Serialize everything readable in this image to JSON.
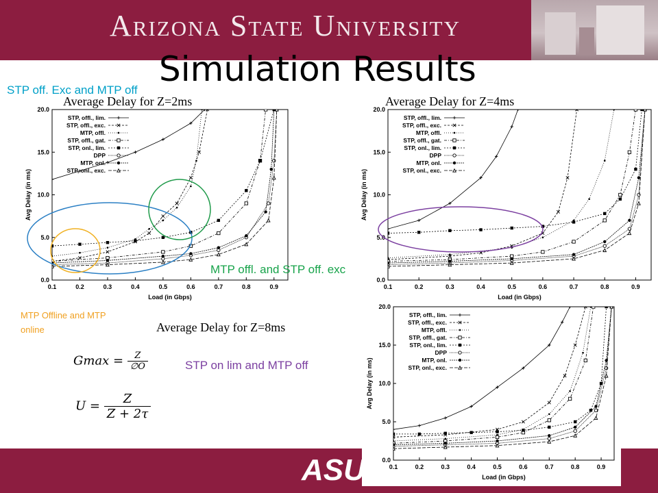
{
  "header": {
    "university": "Arizona State University"
  },
  "footer": {
    "logo": "ASU"
  },
  "slide": {
    "title": "Simulation Results",
    "captions": {
      "z2": "Average Delay for Z=2ms",
      "z4": "Average Delay for Z=4ms",
      "z8": "Average Delay for Z=8ms"
    },
    "notes": {
      "stp_off_exc": "STP off. Exc and MTP off",
      "mtp_stp_exc": "MTP offl. and STP off. exc",
      "mtp_offline_line1": "MTP Offline and MTP",
      "mtp_offline_line2": "online",
      "stp_on_lim": "STP on lim and  MTP off"
    },
    "note_colors": {
      "stp_off_exc": "#00a0c8",
      "mtp_stp_exc": "#17a34a",
      "mtp_offline": "#f0a020",
      "stp_on_lim": "#7b3fa0"
    },
    "equations": {
      "gmax_lhs": "Gmax =",
      "gmax_num": "Z",
      "gmax_den": "∅O",
      "u_lhs": "U =",
      "u_num": "Z",
      "u_den": "Z + 2τ"
    }
  },
  "chart_data": [
    {
      "type": "line",
      "title": "Average Delay for Z=2ms",
      "xlabel": "Load (in Gbps)",
      "ylabel": "Avg Delay (in ms)",
      "xlim": [
        0.1,
        0.95
      ],
      "ylim": [
        0,
        20
      ],
      "xticks": [
        "0.1",
        "0.2",
        "0.3",
        "0.4",
        "0.5",
        "0.6",
        "0.7",
        "0.8",
        "0.9"
      ],
      "yticks": [
        "0.0",
        "5.0",
        "10.0",
        "15.0",
        "20.0"
      ],
      "legend": "top-left",
      "series": [
        {
          "name": "STP, offl., lim.",
          "marker": "plus",
          "points": [
            [
              0.1,
              11.8
            ],
            [
              0.2,
              12.8
            ],
            [
              0.3,
              13.8
            ],
            [
              0.4,
              15.0
            ],
            [
              0.5,
              16.5
            ],
            [
              0.6,
              18.4
            ],
            [
              0.65,
              20
            ]
          ]
        },
        {
          "name": "STP, offl., exc.",
          "marker": "x",
          "points": [
            [
              0.1,
              2.2
            ],
            [
              0.2,
              2.6
            ],
            [
              0.3,
              3.3
            ],
            [
              0.4,
              4.5
            ],
            [
              0.45,
              5.5
            ],
            [
              0.5,
              7.5
            ],
            [
              0.55,
              9.0
            ],
            [
              0.6,
              12.0
            ],
            [
              0.63,
              15.0
            ],
            [
              0.66,
              20
            ]
          ]
        },
        {
          "name": "MTP, offl.",
          "marker": "dot",
          "points": [
            [
              0.1,
              2.8
            ],
            [
              0.2,
              3.2
            ],
            [
              0.3,
              3.8
            ],
            [
              0.4,
              4.8
            ],
            [
              0.45,
              6.0
            ],
            [
              0.5,
              7.0
            ],
            [
              0.55,
              8.5
            ],
            [
              0.6,
              11.0
            ],
            [
              0.62,
              14.0
            ],
            [
              0.64,
              20
            ]
          ]
        },
        {
          "name": "STP, offl., gat.",
          "marker": "square-open",
          "points": [
            [
              0.1,
              2.2
            ],
            [
              0.3,
              2.6
            ],
            [
              0.5,
              3.3
            ],
            [
              0.6,
              4.0
            ],
            [
              0.7,
              5.5
            ],
            [
              0.8,
              9.0
            ],
            [
              0.85,
              14.0
            ],
            [
              0.87,
              20
            ]
          ]
        },
        {
          "name": "STP, onl., lim.",
          "marker": "square",
          "points": [
            [
              0.1,
              4.0
            ],
            [
              0.2,
              4.2
            ],
            [
              0.3,
              4.4
            ],
            [
              0.4,
              4.6
            ],
            [
              0.5,
              5.0
            ],
            [
              0.6,
              5.6
            ],
            [
              0.7,
              7.0
            ],
            [
              0.8,
              10.5
            ],
            [
              0.85,
              14.0
            ],
            [
              0.9,
              20
            ]
          ]
        },
        {
          "name": "DPP",
          "marker": "circle-open",
          "points": [
            [
              0.1,
              1.8
            ],
            [
              0.3,
              2.0
            ],
            [
              0.5,
              2.5
            ],
            [
              0.6,
              2.9
            ],
            [
              0.7,
              3.5
            ],
            [
              0.8,
              5.0
            ],
            [
              0.88,
              9.0
            ],
            [
              0.9,
              14.0
            ],
            [
              0.91,
              20
            ]
          ]
        },
        {
          "name": "MTP, onl.",
          "marker": "circle",
          "points": [
            [
              0.1,
              2.0
            ],
            [
              0.3,
              2.3
            ],
            [
              0.5,
              2.8
            ],
            [
              0.6,
              3.1
            ],
            [
              0.7,
              3.8
            ],
            [
              0.8,
              5.2
            ],
            [
              0.87,
              8.0
            ],
            [
              0.89,
              13.0
            ],
            [
              0.9,
              20
            ]
          ]
        },
        {
          "name": "STP, onl., exc.",
          "marker": "triangle",
          "points": [
            [
              0.1,
              1.6
            ],
            [
              0.3,
              1.8
            ],
            [
              0.5,
              2.1
            ],
            [
              0.6,
              2.4
            ],
            [
              0.7,
              3.0
            ],
            [
              0.8,
              4.2
            ],
            [
              0.88,
              7.0
            ],
            [
              0.9,
              12.0
            ],
            [
              0.91,
              20
            ]
          ]
        }
      ]
    },
    {
      "type": "line",
      "title": "Average Delay for Z=4ms",
      "xlabel": "Load (in Gbps)",
      "ylabel": "Avg Delay (in ms)",
      "xlim": [
        0.1,
        0.95
      ],
      "ylim": [
        0,
        20
      ],
      "xticks": [
        "0.1",
        "0.2",
        "0.3",
        "0.4",
        "0.5",
        "0.6",
        "0.7",
        "0.8",
        "0.9"
      ],
      "yticks": [
        "0.0",
        "5.0",
        "10.0",
        "15.0",
        "20.0"
      ],
      "legend": "top-left",
      "series": [
        {
          "name": "STP, offl., lim.",
          "marker": "plus",
          "points": [
            [
              0.1,
              6.0
            ],
            [
              0.2,
              7.0
            ],
            [
              0.3,
              9.0
            ],
            [
              0.4,
              12.0
            ],
            [
              0.45,
              14.5
            ],
            [
              0.5,
              18.0
            ],
            [
              0.52,
              20
            ]
          ]
        },
        {
          "name": "STP, offl., exc.",
          "marker": "x",
          "points": [
            [
              0.1,
              2.4
            ],
            [
              0.3,
              2.8
            ],
            [
              0.4,
              3.2
            ],
            [
              0.5,
              4.0
            ],
            [
              0.6,
              5.5
            ],
            [
              0.65,
              8.0
            ],
            [
              0.68,
              12.0
            ],
            [
              0.71,
              20
            ]
          ]
        },
        {
          "name": "MTP, offl.",
          "marker": "dot",
          "points": [
            [
              0.1,
              2.6
            ],
            [
              0.3,
              3.0
            ],
            [
              0.5,
              3.8
            ],
            [
              0.6,
              5.0
            ],
            [
              0.7,
              7.0
            ],
            [
              0.75,
              9.5
            ],
            [
              0.8,
              14.0
            ],
            [
              0.83,
              20
            ]
          ]
        },
        {
          "name": "STP, offl., gat.",
          "marker": "square-open",
          "points": [
            [
              0.1,
              2.2
            ],
            [
              0.3,
              2.4
            ],
            [
              0.5,
              2.8
            ],
            [
              0.6,
              3.3
            ],
            [
              0.7,
              4.5
            ],
            [
              0.8,
              7.0
            ],
            [
              0.85,
              10.0
            ],
            [
              0.88,
              15.0
            ],
            [
              0.9,
              20
            ]
          ]
        },
        {
          "name": "STP, onl., lim.",
          "marker": "square",
          "points": [
            [
              0.1,
              5.5
            ],
            [
              0.2,
              5.6
            ],
            [
              0.3,
              5.8
            ],
            [
              0.4,
              5.9
            ],
            [
              0.5,
              6.1
            ],
            [
              0.6,
              6.3
            ],
            [
              0.7,
              6.8
            ],
            [
              0.8,
              7.8
            ],
            [
              0.85,
              9.5
            ],
            [
              0.9,
              13.0
            ],
            [
              0.92,
              20
            ]
          ]
        },
        {
          "name": "DPP",
          "marker": "circle-open",
          "points": [
            [
              0.1,
              1.8
            ],
            [
              0.3,
              2.0
            ],
            [
              0.5,
              2.3
            ],
            [
              0.7,
              2.8
            ],
            [
              0.8,
              4.0
            ],
            [
              0.88,
              6.0
            ],
            [
              0.91,
              10.0
            ],
            [
              0.93,
              20
            ]
          ]
        },
        {
          "name": "MTP, onl.",
          "marker": "circle",
          "points": [
            [
              0.1,
              2.0
            ],
            [
              0.3,
              2.2
            ],
            [
              0.5,
              2.5
            ],
            [
              0.7,
              3.0
            ],
            [
              0.8,
              4.5
            ],
            [
              0.88,
              7.0
            ],
            [
              0.91,
              12.0
            ],
            [
              0.93,
              20
            ]
          ]
        },
        {
          "name": "STP, onl., exc.",
          "marker": "triangle",
          "points": [
            [
              0.1,
              1.6
            ],
            [
              0.3,
              1.8
            ],
            [
              0.5,
              2.0
            ],
            [
              0.7,
              2.5
            ],
            [
              0.8,
              3.5
            ],
            [
              0.88,
              5.5
            ],
            [
              0.91,
              9.0
            ],
            [
              0.93,
              20
            ]
          ]
        }
      ]
    },
    {
      "type": "line",
      "title": "Average Delay for Z=8ms",
      "xlabel": "Load (in Gbps)",
      "ylabel": "Avg Delay (in ms)",
      "xlim": [
        0.1,
        0.95
      ],
      "ylim": [
        0,
        20
      ],
      "xticks": [
        "0.1",
        "0.2",
        "0.3",
        "0.4",
        "0.5",
        "0.6",
        "0.7",
        "0.8",
        "0.9"
      ],
      "yticks": [
        "0.0",
        "5.0",
        "10.0",
        "15.0",
        "20.0"
      ],
      "legend": "top-left",
      "series": [
        {
          "name": "STP, offl., lim.",
          "marker": "plus",
          "points": [
            [
              0.1,
              4.0
            ],
            [
              0.2,
              4.5
            ],
            [
              0.3,
              5.5
            ],
            [
              0.4,
              7.0
            ],
            [
              0.5,
              9.5
            ],
            [
              0.6,
              12.0
            ],
            [
              0.7,
              15.0
            ],
            [
              0.75,
              18.0
            ],
            [
              0.78,
              20
            ]
          ]
        },
        {
          "name": "STP, offl., exc.",
          "marker": "x",
          "points": [
            [
              0.1,
              3.0
            ],
            [
              0.3,
              3.3
            ],
            [
              0.5,
              4.0
            ],
            [
              0.6,
              5.0
            ],
            [
              0.7,
              7.5
            ],
            [
              0.76,
              11.0
            ],
            [
              0.8,
              15.0
            ],
            [
              0.84,
              20
            ]
          ]
        },
        {
          "name": "MTP, offl.",
          "marker": "dot",
          "points": [
            [
              0.1,
              2.5
            ],
            [
              0.3,
              2.8
            ],
            [
              0.5,
              3.3
            ],
            [
              0.6,
              4.0
            ],
            [
              0.7,
              6.0
            ],
            [
              0.78,
              9.0
            ],
            [
              0.83,
              14.0
            ],
            [
              0.86,
              20
            ]
          ]
        },
        {
          "name": "STP, offl., gat.",
          "marker": "square-open",
          "points": [
            [
              0.1,
              2.2
            ],
            [
              0.3,
              2.5
            ],
            [
              0.5,
              3.0
            ],
            [
              0.6,
              3.6
            ],
            [
              0.7,
              5.2
            ],
            [
              0.78,
              8.0
            ],
            [
              0.84,
              13.0
            ],
            [
              0.87,
              20
            ]
          ]
        },
        {
          "name": "STP, onl., lim.",
          "marker": "square",
          "points": [
            [
              0.1,
              3.4
            ],
            [
              0.2,
              3.4
            ],
            [
              0.3,
              3.5
            ],
            [
              0.4,
              3.6
            ],
            [
              0.5,
              3.7
            ],
            [
              0.6,
              3.9
            ],
            [
              0.7,
              4.3
            ],
            [
              0.8,
              5.0
            ],
            [
              0.86,
              6.5
            ],
            [
              0.9,
              10.0
            ],
            [
              0.92,
              20
            ]
          ]
        },
        {
          "name": "DPP",
          "marker": "circle-open",
          "points": [
            [
              0.1,
              1.8
            ],
            [
              0.3,
              2.0
            ],
            [
              0.5,
              2.2
            ],
            [
              0.7,
              2.8
            ],
            [
              0.8,
              3.8
            ],
            [
              0.88,
              6.5
            ],
            [
              0.92,
              12.0
            ],
            [
              0.94,
              20
            ]
          ]
        },
        {
          "name": "MTP, onl.",
          "marker": "circle",
          "points": [
            [
              0.1,
              2.0
            ],
            [
              0.3,
              2.2
            ],
            [
              0.5,
              2.5
            ],
            [
              0.7,
              3.2
            ],
            [
              0.8,
              4.3
            ],
            [
              0.88,
              7.0
            ],
            [
              0.92,
              13.0
            ],
            [
              0.94,
              20
            ]
          ]
        },
        {
          "name": "STP, onl., exc.",
          "marker": "triangle",
          "points": [
            [
              0.1,
              1.5
            ],
            [
              0.3,
              1.7
            ],
            [
              0.5,
              1.9
            ],
            [
              0.7,
              2.4
            ],
            [
              0.8,
              3.2
            ],
            [
              0.88,
              5.5
            ],
            [
              0.92,
              11.0
            ],
            [
              0.94,
              20
            ]
          ]
        }
      ]
    }
  ]
}
